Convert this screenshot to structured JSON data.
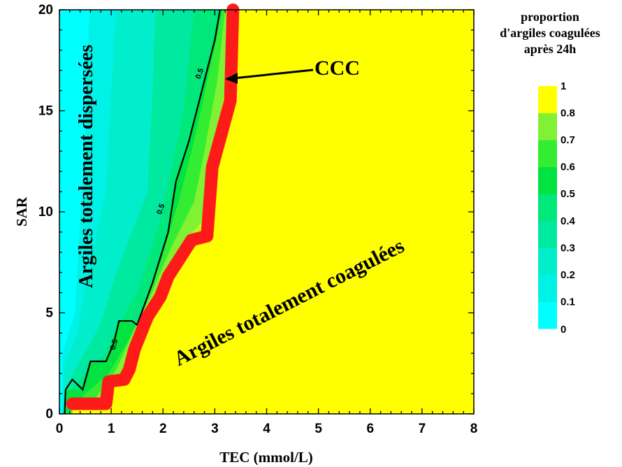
{
  "chart_data": {
    "type": "heatmap",
    "xlabel": "TEC (mmol/L)",
    "ylabel": "SAR",
    "xlim": [
      0,
      8
    ],
    "ylim": [
      0,
      20
    ],
    "x_ticks": [
      "0",
      "1",
      "2",
      "3",
      "4",
      "5",
      "6",
      "7",
      "8"
    ],
    "y_ticks": [
      "0",
      "5",
      "10",
      "15",
      "20"
    ],
    "colorbar": {
      "title_lines": [
        "proportion",
        "d'argiles coagulées",
        "après 24h"
      ],
      "levels": [
        "0",
        "0.1",
        "0.2",
        "0.3",
        "0.4",
        "0.5",
        "0.6",
        "0.7",
        "0.8",
        "1"
      ],
      "colors": [
        "#00ffff",
        "#00f2e6",
        "#00eecb",
        "#00e9a1",
        "#00e77a",
        "#00e340",
        "#33ed33",
        "#80f233",
        "#b8f81a",
        "#ffff00"
      ]
    },
    "contour_0_5": {
      "label": "0.5",
      "points": [
        [
          0.1,
          0
        ],
        [
          0.12,
          1.2
        ],
        [
          0.25,
          1.7
        ],
        [
          0.45,
          1.2
        ],
        [
          0.6,
          2.6
        ],
        [
          0.9,
          2.6
        ],
        [
          1.05,
          3.5
        ],
        [
          1.15,
          4.6
        ],
        [
          1.4,
          4.6
        ],
        [
          1.5,
          4.4
        ],
        [
          1.8,
          6.5
        ],
        [
          2.1,
          9.0
        ],
        [
          2.25,
          11.5
        ],
        [
          2.5,
          13.5
        ],
        [
          2.75,
          16.0
        ],
        [
          3.0,
          18.5
        ],
        [
          3.1,
          20.0
        ]
      ]
    },
    "ccc_line": {
      "label": "CCC",
      "points": [
        [
          0.25,
          0.5
        ],
        [
          0.9,
          0.5
        ],
        [
          0.95,
          1.6
        ],
        [
          1.25,
          1.7
        ],
        [
          1.35,
          2.2
        ],
        [
          1.45,
          3.2
        ],
        [
          1.7,
          4.8
        ],
        [
          1.95,
          5.8
        ],
        [
          2.1,
          6.8
        ],
        [
          2.55,
          8.6
        ],
        [
          2.85,
          8.8
        ],
        [
          2.95,
          12.2
        ],
        [
          3.3,
          15.5
        ],
        [
          3.35,
          20.0
        ]
      ]
    },
    "fill_bands": [
      {
        "level": "0",
        "x_at_y": [
          [
            0.0,
            0
          ],
          [
            0.0,
            20
          ]
        ]
      },
      {
        "level": "0.1",
        "x_at_y": [
          [
            0.05,
            0
          ],
          [
            0.06,
            3
          ],
          [
            0.3,
            5
          ],
          [
            0.5,
            14
          ],
          [
            0.58,
            20
          ]
        ]
      },
      {
        "level": "0.2",
        "x_at_y": [
          [
            0.07,
            0
          ],
          [
            0.1,
            2.5
          ],
          [
            0.35,
            4
          ],
          [
            0.55,
            7
          ],
          [
            0.9,
            11
          ],
          [
            1.0,
            16
          ],
          [
            1.1,
            20
          ]
        ]
      },
      {
        "level": "0.3",
        "x_at_y": [
          [
            0.08,
            0
          ],
          [
            0.15,
            1.5
          ],
          [
            0.6,
            3.5
          ],
          [
            0.8,
            4.5
          ],
          [
            1.1,
            7
          ],
          [
            1.7,
            11
          ],
          [
            1.8,
            16
          ],
          [
            1.85,
            20
          ]
        ]
      },
      {
        "level": "0.4",
        "x_at_y": [
          [
            0.09,
            0
          ],
          [
            0.2,
            1.2
          ],
          [
            0.9,
            3
          ],
          [
            1.1,
            4.2
          ],
          [
            1.5,
            6
          ],
          [
            2.0,
            10
          ],
          [
            2.4,
            15
          ],
          [
            2.6,
            20
          ]
        ]
      },
      {
        "level": "0.5",
        "x_at_y": [
          [
            0.1,
            0
          ],
          [
            0.12,
            1.2
          ],
          [
            0.45,
            1.2
          ],
          [
            0.6,
            2.6
          ],
          [
            0.9,
            2.6
          ],
          [
            1.15,
            4.6
          ],
          [
            1.5,
            4.4
          ],
          [
            1.8,
            6.5
          ],
          [
            2.1,
            9
          ],
          [
            2.25,
            11.5
          ],
          [
            2.5,
            13.5
          ],
          [
            2.75,
            16
          ],
          [
            3.1,
            20
          ]
        ]
      },
      {
        "level": "0.6",
        "x_at_y": [
          [
            0.14,
            0
          ],
          [
            0.5,
            1.0
          ],
          [
            0.95,
            2.0
          ],
          [
            1.3,
            3.5
          ],
          [
            1.6,
            5.0
          ],
          [
            1.95,
            7.5
          ],
          [
            2.3,
            10.5
          ],
          [
            2.6,
            13.5
          ],
          [
            2.9,
            17
          ],
          [
            3.15,
            20
          ]
        ]
      },
      {
        "level": "0.7",
        "x_at_y": [
          [
            0.18,
            0
          ],
          [
            0.7,
            0.8
          ],
          [
            1.1,
            2.2
          ],
          [
            1.45,
            4.2
          ],
          [
            1.75,
            5.8
          ],
          [
            2.15,
            8.2
          ],
          [
            2.6,
            10.5
          ],
          [
            2.8,
            13
          ],
          [
            3.05,
            16.5
          ],
          [
            3.2,
            20
          ]
        ]
      },
      {
        "level": "0.8",
        "x_at_y": [
          [
            0.2,
            0
          ],
          [
            0.85,
            0.8
          ],
          [
            1.2,
            2.0
          ],
          [
            1.55,
            4.3
          ],
          [
            1.85,
            6.0
          ],
          [
            2.35,
            8.4
          ],
          [
            2.75,
            9.5
          ],
          [
            2.9,
            12.5
          ],
          [
            3.2,
            16
          ],
          [
            3.25,
            20
          ]
        ]
      }
    ],
    "annotations": {
      "dispersed": "Argiles totalement dispersées",
      "coagulated": "Argiles totalement coagulées",
      "ccc": "CCC"
    }
  }
}
